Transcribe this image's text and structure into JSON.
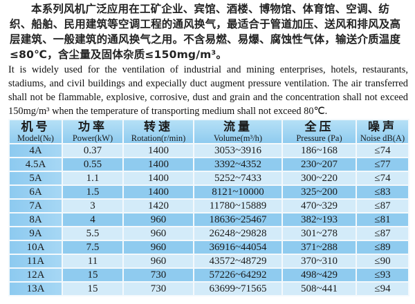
{
  "intro_cn": "本系列风机广泛应用在工矿企业、宾馆、酒楼、博物馆、体育馆、空调、纺织、船舶、民用建筑等空调工程的通风换气，最适合于管道加压、送风和排风及高层建筑、一般建筑的通风换气之用。不含易燃、易爆、腐蚀性气体，输送介质温度≤80℃，含尘量及固体杂质≤150mg/m³。",
  "intro_en": "It is widely used for the ventilation of industrial and mining enterprises, hotels, restaurants, stadiums, and civil buildings and expecially duct augment pressure ventilation. The air transferred shall not be flammable, explosive, corrosive, dust and grain and the concentration shall not exceed 150mg/m³ when the temperature of transporting medium shall not exceed 80℃.",
  "table": {
    "headers": [
      {
        "cn": "机号",
        "en": "Model(№)"
      },
      {
        "cn": "功率",
        "en": "Power(kW)"
      },
      {
        "cn": "转速",
        "en": "Rotation(r/min)"
      },
      {
        "cn": "流量",
        "en": "Volume(m³/h)"
      },
      {
        "cn": "全压",
        "en": "Pressure (Pa)"
      },
      {
        "cn": "噪声",
        "en": "Noise dB(A)"
      }
    ],
    "rows": [
      [
        "4A",
        "0.37",
        "1400",
        "3053~3916",
        "186~168",
        "≤74"
      ],
      [
        "4.5A",
        "0.55",
        "1400",
        "3392~4352",
        "230~207",
        "≤77"
      ],
      [
        "5A",
        "1.1",
        "1400",
        "5252~7433",
        "300~220",
        "≤74"
      ],
      [
        "6A",
        "1.5",
        "1400",
        "8121~10000",
        "325~200",
        "≤83"
      ],
      [
        "7A",
        "3",
        "1420",
        "11780~15889",
        "470~329",
        "≤87"
      ],
      [
        "8A",
        "4",
        "960",
        "18636~25467",
        "382~193",
        "≤81"
      ],
      [
        "9A",
        "5.5",
        "960",
        "26248~29828",
        "301~278",
        "≤87"
      ],
      [
        "10A",
        "7.5",
        "960",
        "36916~44054",
        "371~288",
        "≤89"
      ],
      [
        "11A",
        "11",
        "960",
        "43572~48729",
        "370~310",
        "≤90"
      ],
      [
        "12A",
        "15",
        "730",
        "57226~64292",
        "498~429",
        "≤93"
      ],
      [
        "13A",
        "15",
        "730",
        "63699~71565",
        "508~441",
        "≤94"
      ]
    ]
  }
}
